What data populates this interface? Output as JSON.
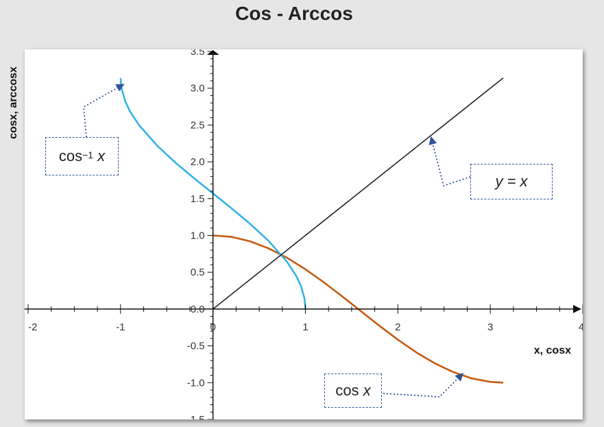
{
  "title": "Cos - Arccos",
  "chart_data": {
    "type": "line",
    "title": "Cos - Arccos",
    "xlabel": "x, cosx",
    "ylabel": "cosx, arccosx",
    "xlim": [
      -2,
      4
    ],
    "ylim": [
      -1.5,
      3.5
    ],
    "x_ticks": [
      -2,
      -1,
      0,
      1,
      2,
      3,
      4
    ],
    "y_ticks": [
      -1.5,
      -1.0,
      -0.5,
      0.0,
      0.5,
      1.0,
      1.5,
      2.0,
      2.5,
      3.0,
      3.5
    ],
    "x_tick_labels": [
      "-2",
      "-1",
      "0",
      "1",
      "2",
      "3",
      "4"
    ],
    "y_tick_labels": [
      "-1.5",
      "-1.0",
      "-0.5",
      "0.0",
      "0.5",
      "1.0",
      "1.5",
      "2.0",
      "2.5",
      "3.0",
      "3.5"
    ],
    "grid": false,
    "series": [
      {
        "name": "cos x",
        "color": "#c55a11",
        "x": [
          0,
          0.2,
          0.4,
          0.6,
          0.8,
          1.0,
          1.2,
          1.4,
          1.6,
          1.8,
          2.0,
          2.2,
          2.4,
          2.6,
          2.8,
          3.0,
          3.14
        ],
        "y": [
          1.0,
          0.98,
          0.921,
          0.825,
          0.697,
          0.54,
          0.362,
          0.17,
          -0.029,
          -0.227,
          -0.416,
          -0.589,
          -0.737,
          -0.857,
          -0.942,
          -0.99,
          -1.0
        ]
      },
      {
        "name": "cos⁻¹ x",
        "color": "#35b2e6",
        "x": [
          -1.0,
          -0.99,
          -0.95,
          -0.9,
          -0.8,
          -0.6,
          -0.4,
          -0.2,
          0,
          0.2,
          0.4,
          0.6,
          0.8,
          0.9,
          0.95,
          0.99,
          1.0
        ],
        "y": [
          3.14,
          3.0,
          2.824,
          2.691,
          2.498,
          2.214,
          1.982,
          1.772,
          1.571,
          1.369,
          1.159,
          0.927,
          0.644,
          0.451,
          0.318,
          0.141,
          0.0
        ]
      },
      {
        "name": "y = x",
        "color": "#222222",
        "x": [
          0,
          3.14
        ],
        "y": [
          0,
          3.14
        ]
      }
    ],
    "annotations": [
      {
        "id": "acos",
        "text_main": "cos",
        "text_sup": "−1",
        "text_var": "x"
      },
      {
        "id": "cos",
        "text_main": "cos",
        "text_var": "x"
      },
      {
        "id": "yx",
        "text_main": "y = x"
      }
    ],
    "colors": {
      "axis": "#111111",
      "callout_border": "#2f5597",
      "arrow": "#2f5597"
    }
  }
}
